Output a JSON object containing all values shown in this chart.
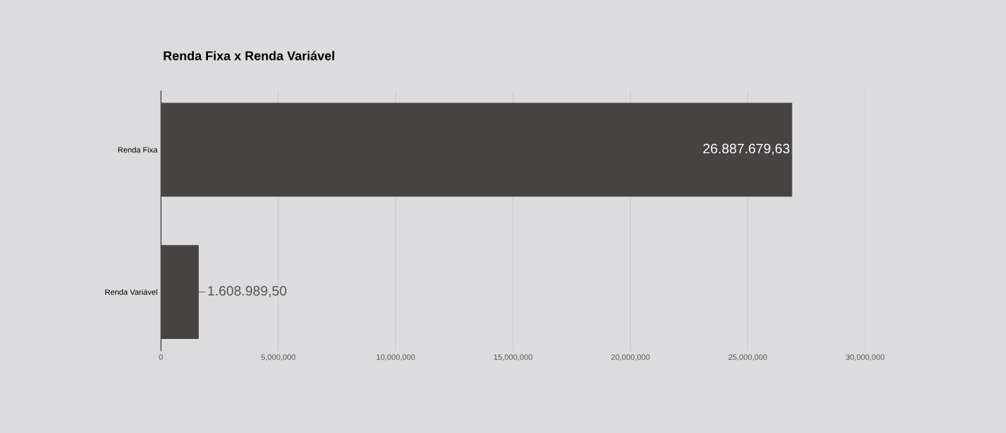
{
  "chart_data": {
    "type": "bar",
    "orientation": "horizontal",
    "title": "Renda Fixa x Renda Variável",
    "categories": [
      "Renda Fixa",
      "Renda Variável"
    ],
    "values": [
      26887679.63,
      1608989.5
    ],
    "value_labels": [
      "26.887.679,63",
      "1.608.989,50"
    ],
    "color": "#474343",
    "xlim": [
      0,
      30000000
    ],
    "xticks": [
      0,
      {
        "value": 5000000,
        "label": "5,000,000"
      },
      {
        "value": 10000000,
        "label": "10,000,000"
      },
      {
        "value": 15000000,
        "label": "15,000,000"
      },
      {
        "value": 20000000,
        "label": "20,000,000"
      },
      {
        "value": 25000000,
        "label": "25,000,000"
      },
      {
        "value": 30000000,
        "label": "30,000,000"
      }
    ],
    "grid": "x"
  }
}
